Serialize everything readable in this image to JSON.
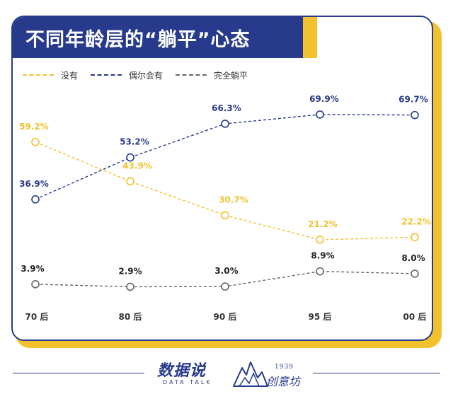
{
  "title": "不同年龄层的“躺平”心态",
  "chart_data": {
    "type": "line",
    "title": "不同年龄层的“躺平”心态",
    "categories": [
      "70后",
      "80后",
      "90后",
      "95后",
      "00后"
    ],
    "tick_labels": [
      "70 后",
      "80 后",
      "90 后",
      "95 后",
      "00 后"
    ],
    "ylim": [
      0,
      75
    ],
    "grid": false,
    "legend_position": "top-left",
    "series": [
      {
        "name": "没有",
        "color": "#f2c12e",
        "values": [
          59.2,
          43.9,
          30.7,
          21.2,
          22.2
        ],
        "labels": [
          "59.2%",
          "43.9%",
          "30.7%",
          "21.2%",
          "22.2%"
        ]
      },
      {
        "name": "偶尔会有",
        "color": "#273a8c",
        "values": [
          36.9,
          53.2,
          66.3,
          69.9,
          69.7
        ],
        "labels": [
          "36.9%",
          "53.2%",
          "66.3%",
          "69.9%",
          "69.7%"
        ]
      },
      {
        "name": "完全躺平",
        "color": "#666666",
        "values": [
          3.9,
          2.9,
          3.0,
          8.9,
          8.0
        ],
        "labels": [
          "3.9%",
          "2.9%",
          "3.0%",
          "8.9%",
          "8.0%"
        ]
      }
    ]
  },
  "footer": {
    "logo_main": "数据说",
    "logo_sub": "DATA TALK",
    "brand_year": "1939",
    "brand_name": "创意坊"
  },
  "colors": {
    "navy": "#273a8c",
    "yellow": "#f2c12e",
    "gray": "#666666"
  }
}
